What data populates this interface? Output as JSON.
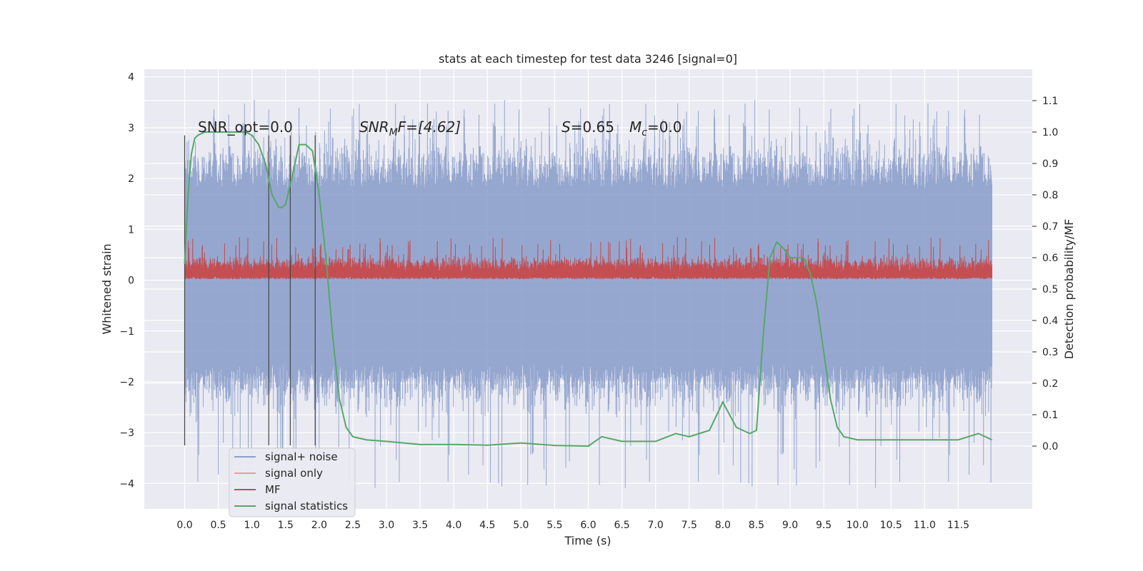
{
  "chart_data": {
    "type": "line",
    "title": "stats at each timestep for test data 3246 [signal=0]",
    "xlabel": "Time (s)",
    "ylabel": "Whitened strain",
    "ylabel_right": "Detection probability/MF",
    "xlim": [
      -0.6,
      12.6
    ],
    "ylim": [
      -4.5,
      4.15
    ],
    "ylim_right": [
      -0.2,
      1.2
    ],
    "x_ticks": [
      "0.0",
      "0.5",
      "1.0",
      "1.5",
      "2.0",
      "2.5",
      "3.0",
      "3.5",
      "4.0",
      "4.5",
      "5.0",
      "5.5",
      "6.0",
      "6.5",
      "7.0",
      "7.5",
      "8.0",
      "8.5",
      "9.0",
      "9.5",
      "10.0",
      "10.5",
      "11.0",
      "11.5"
    ],
    "y_ticks": [
      "4",
      "3",
      "2",
      "1",
      "0",
      "−1",
      "−2",
      "−3",
      "−4"
    ],
    "y_ticks_right": [
      "1.1",
      "1.0",
      "0.9",
      "0.8",
      "0.7",
      "0.6",
      "0.5",
      "0.4",
      "0.3",
      "0.2",
      "0.1",
      "0.0"
    ],
    "annotations": {
      "snr_opt": "SNR_opt=0.0",
      "snr_mf_base": "SNR",
      "snr_mf_sub": "M",
      "snr_mf_rest": "F=[4.62]",
      "s_symbol": "S",
      "s_value": "=0.65",
      "mc_base": "M",
      "mc_sub": "c",
      "mc_value": "=0.0"
    },
    "vertical_markers_s": [
      0.0,
      1.25,
      1.57,
      1.94
    ],
    "series": [
      {
        "name": "signal+ noise",
        "color": "#8da0cb",
        "x_range": [
          0.0,
          12.0
        ],
        "approx_range": [
          -4.1,
          3.7
        ],
        "typical_band": [
          -2.2,
          2.4
        ]
      },
      {
        "name": "signal only",
        "color": "#e8a08a",
        "values": []
      },
      {
        "name": "MF",
        "color": "#c44e52",
        "x_range": [
          0.0,
          12.0
        ],
        "approx_range": [
          0.0,
          1.0
        ],
        "typical_band": [
          0.0,
          0.55
        ]
      },
      {
        "name": "signal statistics",
        "color": "#55a868",
        "axis": "right",
        "x": [
          0.0,
          0.05,
          0.1,
          0.15,
          0.2,
          0.3,
          0.5,
          0.7,
          0.9,
          1.0,
          1.1,
          1.2,
          1.3,
          1.4,
          1.45,
          1.5,
          1.6,
          1.7,
          1.8,
          1.9,
          2.0,
          2.1,
          2.2,
          2.3,
          2.4,
          2.5,
          2.7,
          3.0,
          3.5,
          4.0,
          4.5,
          5.0,
          5.5,
          6.0,
          6.2,
          6.5,
          7.0,
          7.3,
          7.5,
          7.8,
          8.0,
          8.2,
          8.4,
          8.5,
          8.6,
          8.7,
          8.8,
          8.9,
          9.0,
          9.2,
          9.3,
          9.4,
          9.5,
          9.6,
          9.7,
          9.8,
          10.0,
          10.5,
          11.0,
          11.5,
          11.8,
          12.0
        ],
        "y": [
          0.58,
          0.8,
          0.93,
          0.98,
          0.99,
          1.0,
          1.0,
          1.0,
          1.0,
          0.99,
          0.96,
          0.9,
          0.8,
          0.76,
          0.76,
          0.77,
          0.86,
          0.96,
          0.96,
          0.94,
          0.8,
          0.6,
          0.35,
          0.15,
          0.06,
          0.03,
          0.02,
          0.015,
          0.005,
          0.005,
          0.003,
          0.01,
          0.002,
          0.0,
          0.03,
          0.015,
          0.015,
          0.04,
          0.03,
          0.05,
          0.14,
          0.06,
          0.04,
          0.05,
          0.35,
          0.6,
          0.65,
          0.63,
          0.6,
          0.6,
          0.55,
          0.45,
          0.3,
          0.15,
          0.06,
          0.03,
          0.02,
          0.02,
          0.02,
          0.02,
          0.04,
          0.02
        ]
      }
    ],
    "legend_placement": "lower-left",
    "grid": true
  }
}
